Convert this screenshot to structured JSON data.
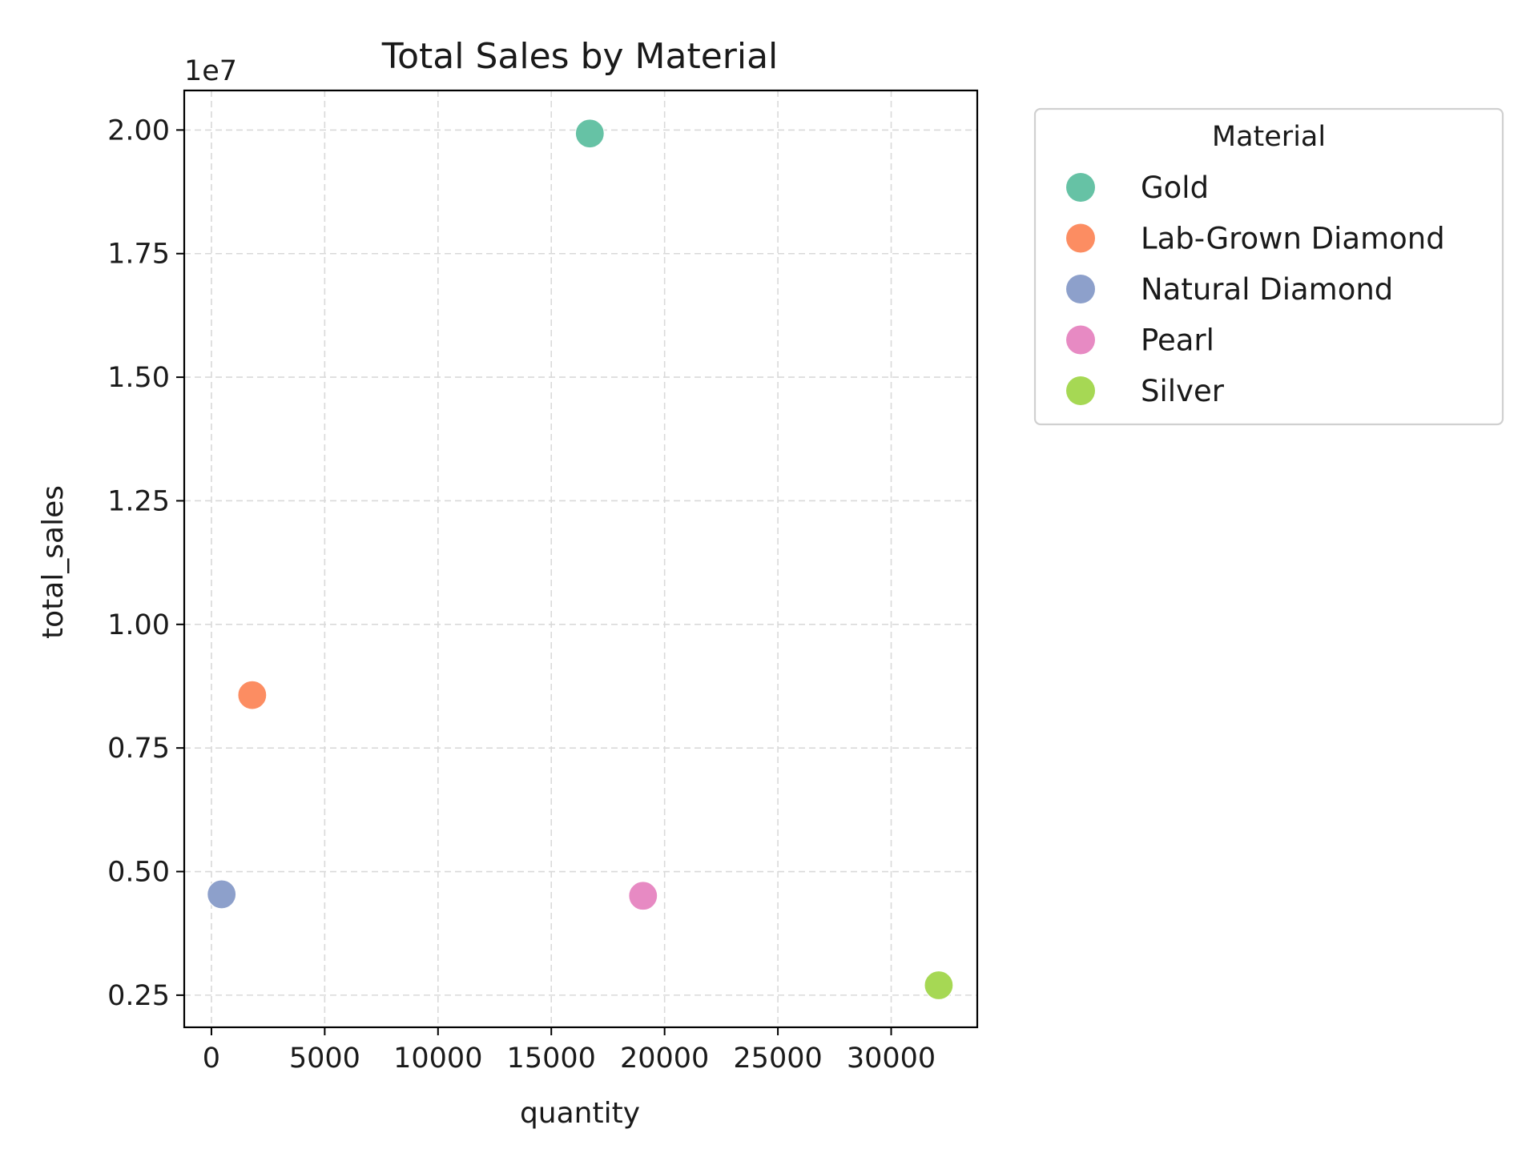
{
  "chart_data": {
    "type": "scatter",
    "title": "Total Sales by Material",
    "xlabel": "quantity",
    "ylabel": "total_sales",
    "y_offset_label": "1e7",
    "y_scale_factor": 10000000,
    "xlim": [
      -1200,
      33800
    ],
    "ylim": [
      0.185,
      2.08
    ],
    "xticks": [
      0,
      5000,
      10000,
      15000,
      20000,
      25000,
      30000
    ],
    "xtick_labels": [
      "0",
      "5000",
      "10000",
      "15000",
      "20000",
      "25000",
      "30000"
    ],
    "yticks": [
      0.25,
      0.5,
      0.75,
      1.0,
      1.25,
      1.5,
      1.75,
      2.0
    ],
    "ytick_labels": [
      "0.25",
      "0.50",
      "0.75",
      "1.00",
      "1.25",
      "1.50",
      "1.75",
      "2.00"
    ],
    "grid": true,
    "legend": {
      "title": "Material",
      "placement": "outside-right-top"
    },
    "series": [
      {
        "name": "Gold",
        "color": "#66c2a5",
        "x": 16700,
        "y": 1.993
      },
      {
        "name": "Lab-Grown Diamond",
        "color": "#fc8d62",
        "x": 1800,
        "y": 0.857
      },
      {
        "name": "Natural Diamond",
        "color": "#8da0cb",
        "x": 450,
        "y": 0.454
      },
      {
        "name": "Pearl",
        "color": "#e78ac3",
        "x": 19050,
        "y": 0.451
      },
      {
        "name": "Silver",
        "color": "#a6d854",
        "x": 32100,
        "y": 0.27
      }
    ]
  }
}
